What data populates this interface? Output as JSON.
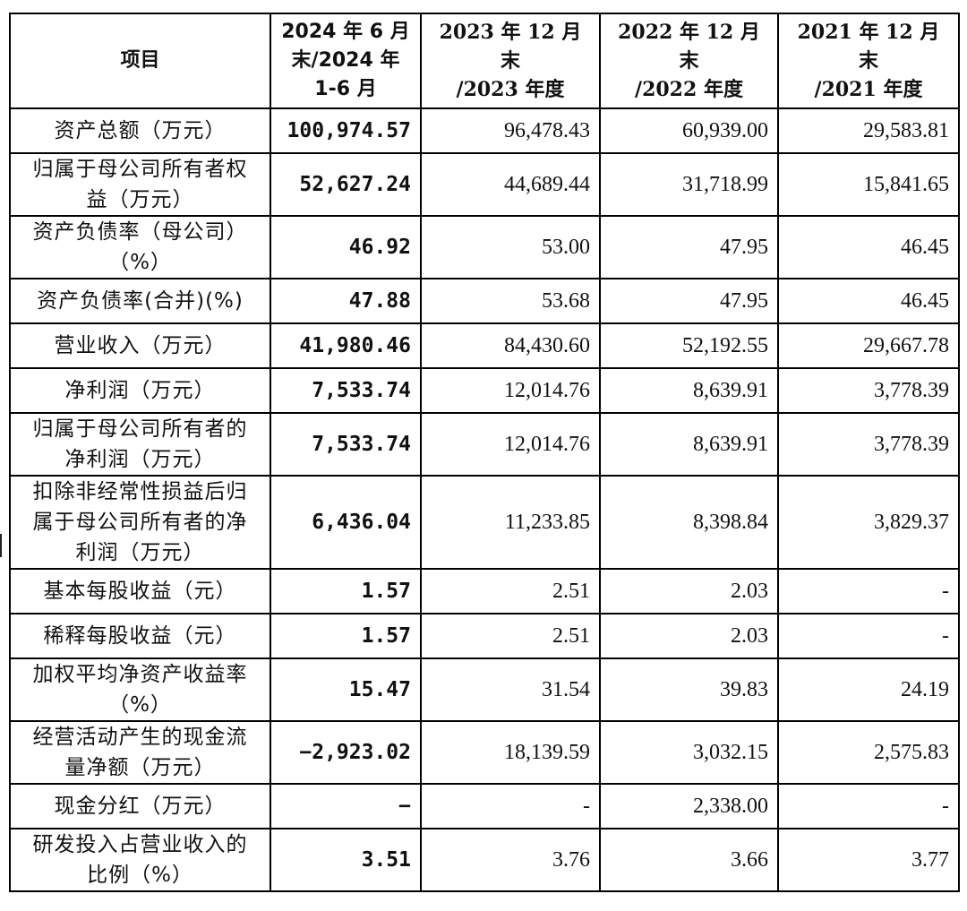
{
  "header": {
    "item": "项目",
    "col1_lines": [
      "2024 年 6 月",
      "末/2024 年",
      "1-6 月"
    ],
    "col2_lines": [
      "2023 年 12 月末",
      "/2023 年度"
    ],
    "col3_lines": [
      "2022 年 12 月末",
      "/2022 年度"
    ],
    "col4_lines": [
      "2021 年 12 月末",
      "/2021 年度"
    ]
  },
  "rows": [
    {
      "label": [
        "资产总额（万元）"
      ],
      "v1": "100,974.57",
      "v2": "96,478.43",
      "v3": "60,939.00",
      "v4": "29,583.81"
    },
    {
      "label": [
        "归属于母公司所有者权",
        "益（万元）"
      ],
      "v1": "52,627.24",
      "v2": "44,689.44",
      "v3": "31,718.99",
      "v4": "15,841.65"
    },
    {
      "label": [
        "资产负债率（母公司）",
        "（%）"
      ],
      "v1": "46.92",
      "v2": "53.00",
      "v3": "47.95",
      "v4": "46.45"
    },
    {
      "label": [
        "资产负债率(合并)(%)"
      ],
      "v1": "47.88",
      "v2": "53.68",
      "v3": "47.95",
      "v4": "46.45"
    },
    {
      "label": [
        "营业收入（万元）"
      ],
      "v1": "41,980.46",
      "v2": "84,430.60",
      "v3": "52,192.55",
      "v4": "29,667.78"
    },
    {
      "label": [
        "净利润（万元）"
      ],
      "v1": "7,533.74",
      "v2": "12,014.76",
      "v3": "8,639.91",
      "v4": "3,778.39"
    },
    {
      "label": [
        "归属于母公司所有者的",
        "净利润（万元）"
      ],
      "v1": "7,533.74",
      "v2": "12,014.76",
      "v3": "8,639.91",
      "v4": "3,778.39"
    },
    {
      "label": [
        "扣除非经常性损益后归",
        "属于母公司所有者的净",
        "利润（万元）"
      ],
      "v1": "6,436.04",
      "v2": "11,233.85",
      "v3": "8,398.84",
      "v4": "3,829.37"
    },
    {
      "label": [
        "基本每股收益（元）"
      ],
      "v1": "1.57",
      "v2": "2.51",
      "v3": "2.03",
      "v4": "-"
    },
    {
      "label": [
        "稀释每股收益（元）"
      ],
      "v1": "1.57",
      "v2": "2.51",
      "v3": "2.03",
      "v4": "-"
    },
    {
      "label": [
        "加权平均净资产收益率",
        "（%）"
      ],
      "v1": "15.47",
      "v2": "31.54",
      "v3": "39.83",
      "v4": "24.19"
    },
    {
      "label": [
        "经营活动产生的现金流",
        "量净额（万元）"
      ],
      "v1": "−2,923.02",
      "v2": "18,139.59",
      "v3": "3,032.15",
      "v4": "2,575.83"
    },
    {
      "label": [
        "现金分红（万元）"
      ],
      "v1": "−",
      "v2": "-",
      "v3": "2,338.00",
      "v4": "-"
    },
    {
      "label": [
        "研发投入占营业收入的",
        "比例（%）"
      ],
      "v1": "3.51",
      "v2": "3.76",
      "v3": "3.66",
      "v4": "3.77"
    }
  ]
}
